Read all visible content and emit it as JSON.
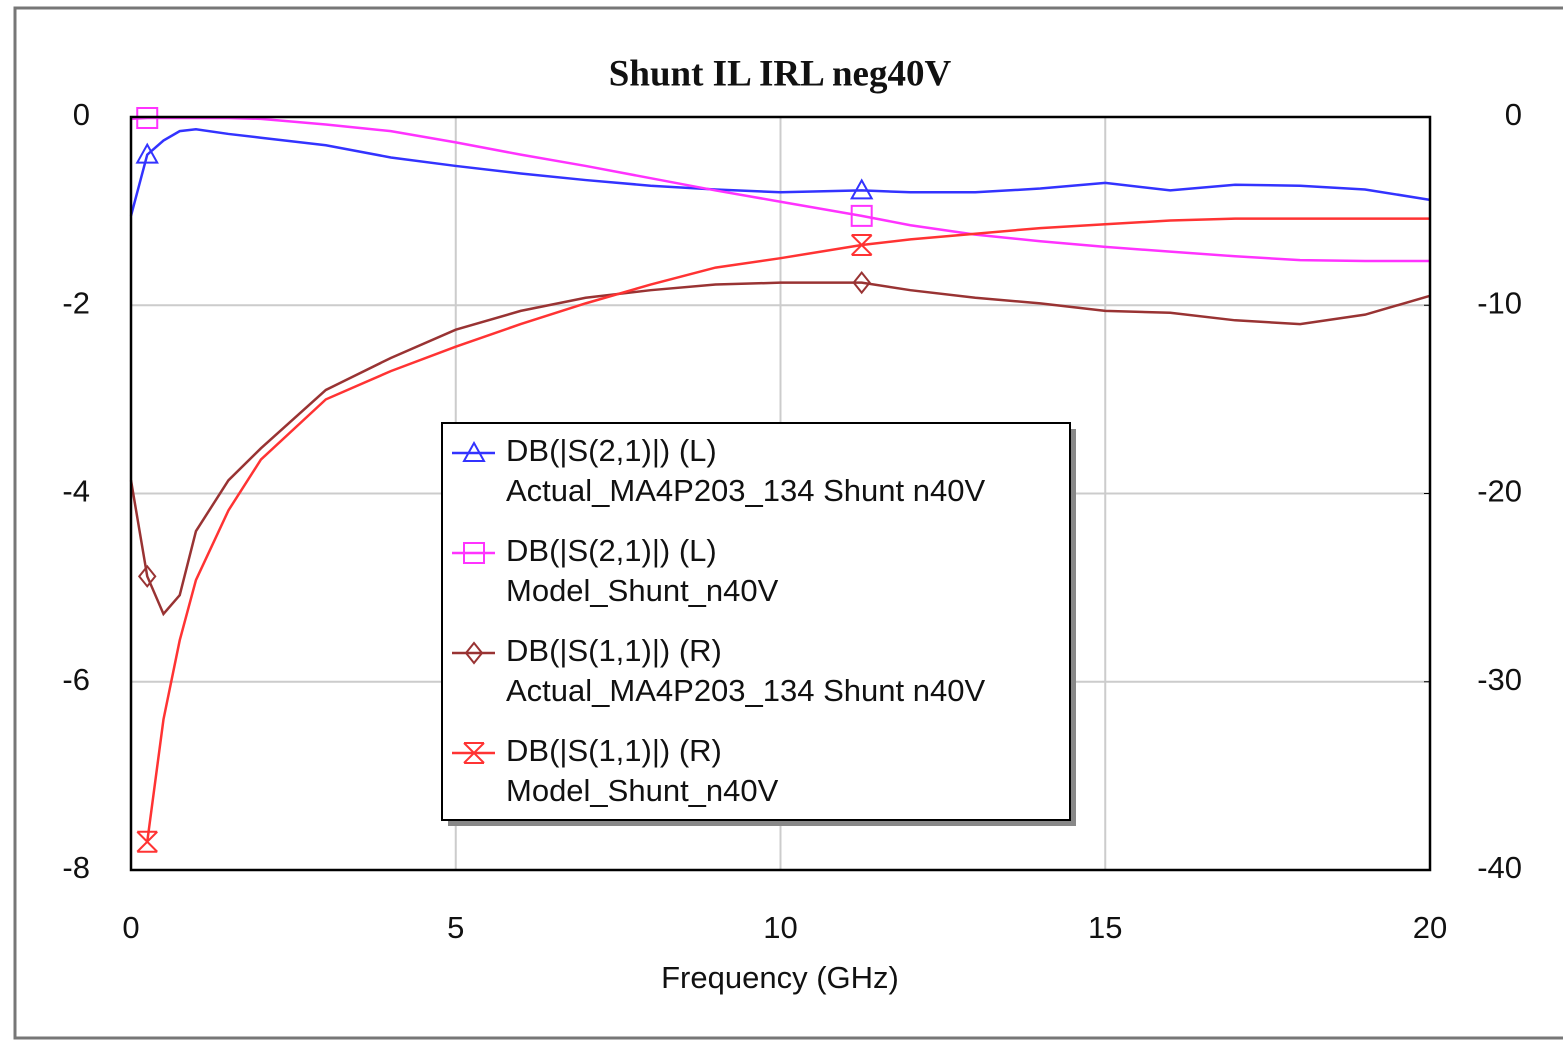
{
  "chart_data": {
    "type": "line",
    "title": "Shunt IL IRL neg40V",
    "x_label": "Frequency (GHz)",
    "x": [
      0,
      0.25,
      0.5,
      0.75,
      1,
      1.5,
      2,
      3,
      4,
      5,
      6,
      7,
      8,
      9,
      10,
      11.25,
      12,
      13,
      14,
      15,
      16,
      17,
      18,
      19,
      20
    ],
    "xlim": [
      0,
      20
    ],
    "xticks": [
      0,
      5,
      10,
      15,
      20
    ],
    "ylim": [
      -8,
      0
    ],
    "yticks": [
      0,
      -2,
      -4,
      -6,
      -8
    ],
    "y2lim": [
      -40,
      0
    ],
    "y2ticks": [
      0,
      -10,
      -20,
      -30,
      -40
    ],
    "grid": true,
    "marker_indices": [
      1,
      15
    ],
    "series": [
      {
        "name": "DB(|S(2,1)|) (L)",
        "subname": "Actual_MA4P203_134 Shunt  n40V",
        "color": "#3333ff",
        "marker": "triangle",
        "axis": "y",
        "values": [
          -1.05,
          -0.4,
          -0.25,
          -0.15,
          -0.13,
          -0.18,
          -0.22,
          -0.3,
          -0.43,
          -0.52,
          -0.6,
          -0.67,
          -0.73,
          -0.77,
          -0.8,
          -0.78,
          -0.8,
          -0.8,
          -0.76,
          -0.7,
          -0.78,
          -0.72,
          -0.73,
          -0.77,
          -0.88
        ]
      },
      {
        "name": "DB(|S(2,1)|) (L)",
        "subname": "Model_Shunt_n40V",
        "color": "#ff33ff",
        "marker": "square",
        "axis": "y",
        "values": [
          -0.02,
          -0.01,
          -0.01,
          -0.01,
          -0.01,
          -0.01,
          -0.02,
          -0.08,
          -0.15,
          -0.27,
          -0.4,
          -0.52,
          -0.65,
          -0.78,
          -0.9,
          -1.05,
          -1.15,
          -1.25,
          -1.32,
          -1.38,
          -1.43,
          -1.48,
          -1.52,
          -1.53,
          -1.53
        ]
      },
      {
        "name": "DB(|S(1,1)|) (R)",
        "subname": "Actual_MA4P203_134 Shunt  n40V",
        "color": "#993333",
        "marker": "diamond",
        "axis": "y2",
        "values": [
          -19.3,
          -24.4,
          -26.4,
          -25.4,
          -22,
          -19.3,
          -17.6,
          -14.5,
          -12.8,
          -11.3,
          -10.3,
          -9.6,
          -9.2,
          -8.9,
          -8.8,
          -8.8,
          -9.2,
          -9.6,
          -9.9,
          -10.3,
          -10.4,
          -10.8,
          -11,
          -10.5,
          -9.5
        ]
      },
      {
        "name": "DB(|S(1,1)|) (R)",
        "subname": "Model_Shunt_n40V",
        "color": "#ff3333",
        "marker": "hourglass",
        "axis": "y2",
        "values": [
          null,
          -38.5,
          -32,
          -27.8,
          -24.6,
          -20.9,
          -18.2,
          -15,
          -13.5,
          -12.2,
          -11,
          -9.9,
          -8.9,
          -8,
          -7.5,
          -6.8,
          -6.5,
          -6.2,
          -5.9,
          -5.7,
          -5.5,
          -5.4,
          -5.4,
          -5.4,
          -5.4
        ]
      }
    ]
  }
}
